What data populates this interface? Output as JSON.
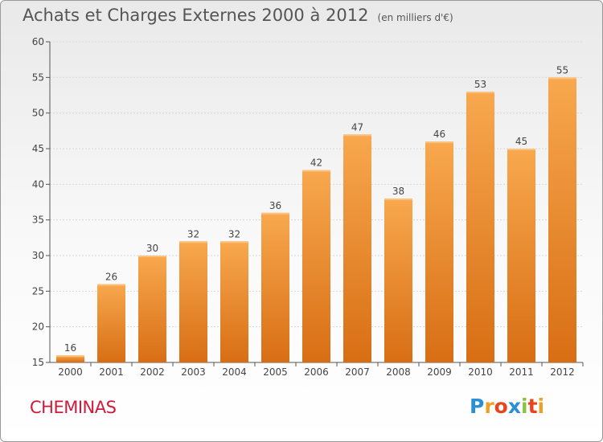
{
  "title": "Achats et Charges Externes 2000 à 2012",
  "subtitle": "(en milliers d'€)",
  "commune": "CHEMINAS",
  "logo": {
    "letters": [
      "P",
      "r",
      "o",
      "x",
      "i",
      "t",
      "i"
    ],
    "colors": [
      "#2a8fd6",
      "#f0a020",
      "#e8451e",
      "#2a8fd6",
      "#8ac43f",
      "#e8451e",
      "#f0a020"
    ]
  },
  "colors": {
    "bar_light": "#f8a84e",
    "bar_dark": "#d86e14",
    "grid": "#d8d8d8"
  },
  "chart_data": {
    "type": "bar",
    "categories": [
      "2000",
      "2001",
      "2002",
      "2003",
      "2004",
      "2005",
      "2006",
      "2007",
      "2008",
      "2009",
      "2010",
      "2011",
      "2012"
    ],
    "values": [
      16,
      26,
      30,
      32,
      32,
      36,
      42,
      47,
      38,
      46,
      53,
      45,
      55
    ],
    "ylim": [
      15,
      60
    ],
    "yticks": [
      15,
      20,
      25,
      30,
      35,
      40,
      45,
      50,
      55,
      60
    ],
    "grid": true
  }
}
